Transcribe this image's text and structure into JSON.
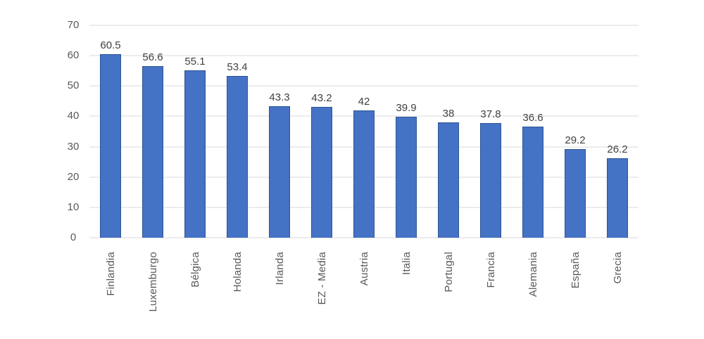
{
  "chart_data": {
    "type": "bar",
    "categories": [
      "Finlandia",
      "Luxemburgo",
      "Bélgica",
      "Holanda",
      "Irlanda",
      "EZ - Media",
      "Austria",
      "Italia",
      "Portugal",
      "Francia",
      "Alemania",
      "España",
      "Grecia"
    ],
    "values": [
      60.5,
      56.6,
      55.1,
      53.4,
      43.3,
      43.2,
      42,
      39.9,
      38,
      37.8,
      36.6,
      29.2,
      26.2
    ],
    "title": "",
    "xlabel": "",
    "ylabel": "",
    "ylim": [
      0,
      70
    ],
    "yticks": [
      0,
      10,
      20,
      30,
      40,
      50,
      60,
      70
    ],
    "grid": true,
    "legend": false,
    "data_labels": true,
    "x_label_rotation_deg": 90
  },
  "colors": {
    "bar_fill": "#4472C4",
    "bar_border": "#2F5597",
    "gridline": "#D9D9D9",
    "axis_tick_label": "#595959",
    "data_label": "#404040",
    "background": "#FFFFFF"
  }
}
